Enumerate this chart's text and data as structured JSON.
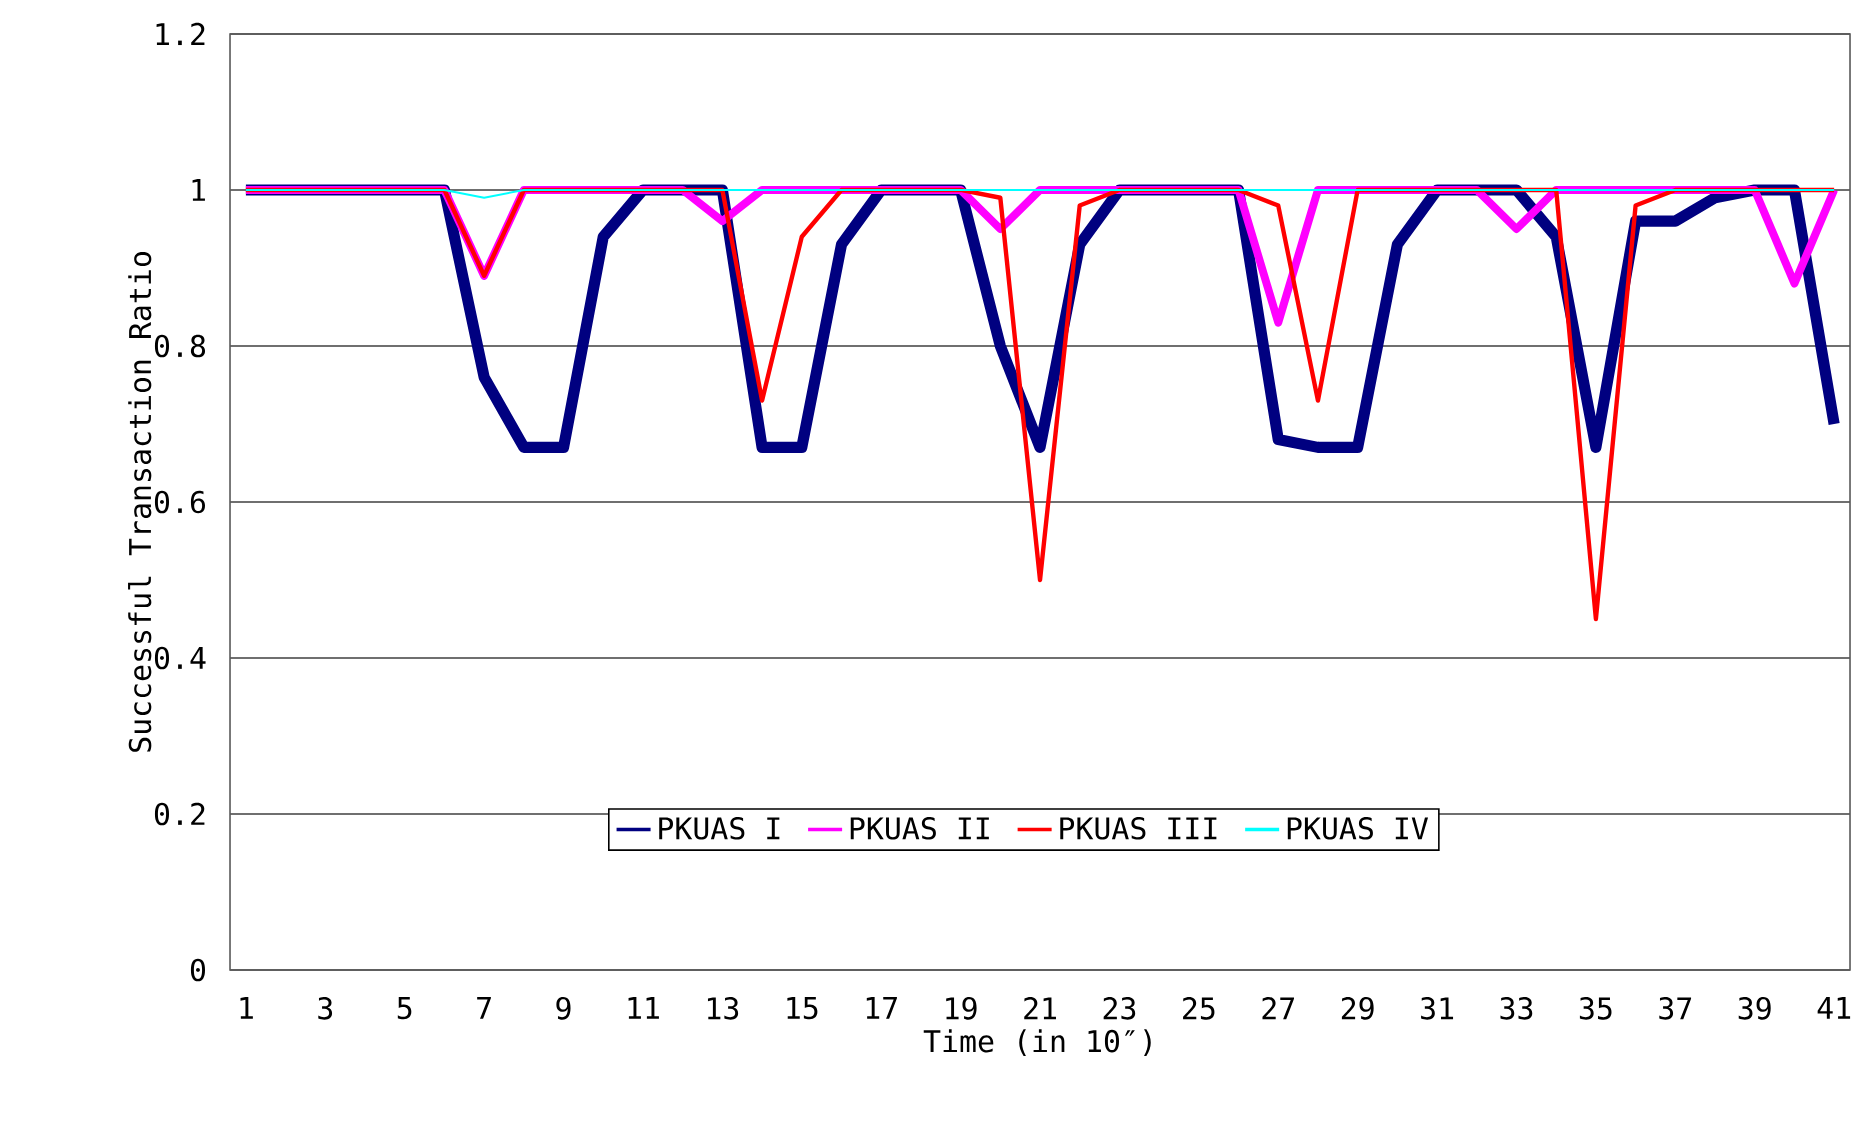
{
  "chart_data": {
    "type": "line",
    "xlabel": "Time (in 10″)",
    "ylabel": "Successful Transaction Ratio",
    "categories": [
      "1",
      null,
      "3",
      null,
      "5",
      null,
      "7",
      null,
      "9",
      null,
      "11",
      null,
      "13",
      null,
      "15",
      null,
      "17",
      null,
      "19",
      null,
      "21",
      null,
      "23",
      null,
      "25",
      null,
      "27",
      null,
      "29",
      null,
      "31",
      null,
      "33",
      null,
      "35",
      null,
      "37",
      null,
      "39",
      null,
      "41"
    ],
    "ylim": [
      0,
      1.2
    ],
    "yticks": [
      0,
      0.2,
      0.4,
      0.6,
      0.8,
      1,
      1.2
    ],
    "grid": "y",
    "legend": "bottom",
    "marker": "none",
    "line_style": "solid",
    "series": [
      {
        "name": "PKUAS I",
        "color": "#000080",
        "values": [
          1,
          1,
          1,
          1,
          1,
          1,
          0.76,
          0.67,
          0.67,
          0.94,
          1,
          1,
          1,
          0.67,
          0.67,
          0.93,
          1,
          1,
          1,
          0.8,
          0.67,
          0.93,
          1,
          1,
          1,
          1,
          0.68,
          0.67,
          0.67,
          0.93,
          1,
          1,
          1,
          0.94,
          0.67,
          0.96,
          0.96,
          0.99,
          1,
          1,
          0.7
        ]
      },
      {
        "name": "PKUAS II",
        "color": "#ff00ff",
        "values": [
          1,
          1,
          1,
          1,
          1,
          1,
          0.89,
          1,
          1,
          1,
          1,
          1,
          0.96,
          1,
          1,
          1,
          1,
          1,
          1,
          0.95,
          1,
          1,
          1,
          1,
          1,
          1,
          0.83,
          1,
          1,
          1,
          1,
          1,
          0.95,
          1,
          1,
          1,
          1,
          1,
          1,
          0.88,
          1
        ]
      },
      {
        "name": "PKUAS III",
        "color": "#ff0000",
        "values": [
          1,
          1,
          1,
          1,
          1,
          1,
          0.89,
          1,
          1,
          1,
          1,
          1,
          1,
          0.73,
          0.94,
          1,
          1,
          1,
          1,
          0.99,
          0.5,
          0.98,
          1,
          1,
          1,
          1,
          0.98,
          0.73,
          1,
          1,
          1,
          1,
          1,
          1,
          0.45,
          0.98,
          1,
          1,
          1,
          1,
          1
        ]
      },
      {
        "name": "PKUAS IV",
        "color": "#00ffff",
        "values": [
          1,
          1,
          1,
          1,
          1,
          1,
          0.99,
          1,
          1,
          1,
          1,
          1,
          1,
          1,
          1,
          1,
          1,
          1,
          1,
          1,
          1,
          1,
          1,
          1,
          1,
          1,
          1,
          1,
          1,
          1,
          1,
          1,
          1,
          1,
          1,
          1,
          1,
          1,
          1,
          1,
          1
        ]
      }
    ]
  }
}
